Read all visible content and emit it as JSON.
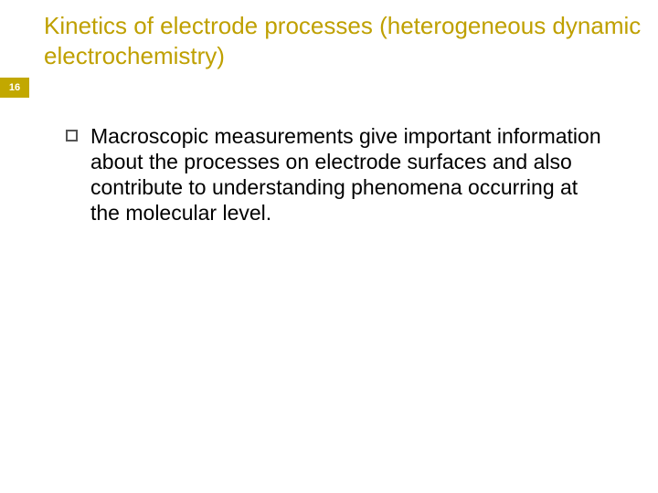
{
  "slide": {
    "title": "Kinetics of electrode processes (heterogeneous dynamic electrochemistry)",
    "page_number": "16",
    "bullets": [
      {
        "text": "Macroscopic measurements give important information about the processes on electrode surfaces and also contribute to understanding phenomena occurring at the  molecular level."
      }
    ]
  },
  "style": {
    "title_color": "#bfa000",
    "title_fontsize": 26,
    "page_badge_bg": "#c2a800",
    "page_badge_color": "#ffffff",
    "page_badge_fontsize": 11,
    "body_fontsize": 23,
    "body_color": "#000000",
    "bullet_border_color": "#555555",
    "background_color": "#ffffff"
  }
}
